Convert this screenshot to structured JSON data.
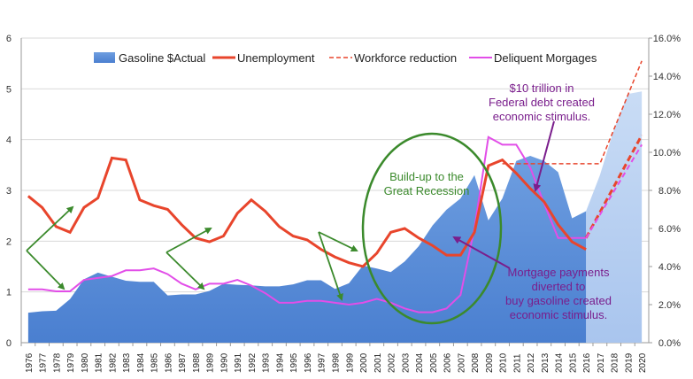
{
  "chart_data": {
    "type": "area+line",
    "years": [
      "1976",
      "1977",
      "1978",
      "1979",
      "1980",
      "1981",
      "1982",
      "1983",
      "1984",
      "1985",
      "1986",
      "1987",
      "1988",
      "1989",
      "1990",
      "1991",
      "1992",
      "1993",
      "1994",
      "1995",
      "1996",
      "1997",
      "1998",
      "1999",
      "2000",
      "2001",
      "2002",
      "2003",
      "2004",
      "2005",
      "2006",
      "2007",
      "2008",
      "2009",
      "2010",
      "2011",
      "2012",
      "2013",
      "2014",
      "2015",
      "2016",
      "2017",
      "2018",
      "2019",
      "2020"
    ],
    "left_axis": {
      "min": 0,
      "max": 6,
      "ticks": [
        "0",
        "1",
        "2",
        "3",
        "4",
        "5",
        "6"
      ]
    },
    "right_axis": {
      "min": 0,
      "max": 16,
      "ticks": [
        "0.0%",
        "2.0%",
        "4.0%",
        "6.0%",
        "8.0%",
        "10.0%",
        "12.0%",
        "14.0%",
        "16.0%"
      ]
    },
    "series": [
      {
        "name": "Gasoline $Actual",
        "axis": "left",
        "color": "#5b8ed8",
        "values": [
          0.59,
          0.62,
          0.63,
          0.86,
          1.25,
          1.38,
          1.3,
          1.22,
          1.2,
          1.2,
          0.93,
          0.95,
          0.95,
          1.02,
          1.16,
          1.14,
          1.13,
          1.11,
          1.11,
          1.15,
          1.23,
          1.23,
          1.06,
          1.17,
          1.52,
          1.46,
          1.39,
          1.6,
          1.9,
          2.31,
          2.62,
          2.84,
          3.3,
          2.41,
          2.84,
          3.58,
          3.68,
          3.58,
          3.36,
          2.45,
          2.59
        ]
      },
      {
        "name": "Gasoline projection",
        "axis": "left",
        "color": "#b8cff0",
        "x": [
          "2016",
          "2017",
          "2018",
          "2019",
          "2020"
        ],
        "values": [
          2.59,
          3.3,
          4.2,
          4.9,
          4.95
        ]
      },
      {
        "name": "Unemployment",
        "axis": "right",
        "color": "#e8452c",
        "values": [
          7.7,
          7.1,
          6.1,
          5.8,
          7.1,
          7.6,
          9.7,
          9.6,
          7.5,
          7.2,
          7.0,
          6.2,
          5.5,
          5.3,
          5.6,
          6.8,
          7.5,
          6.9,
          6.1,
          5.6,
          5.4,
          4.9,
          4.5,
          4.2,
          4.0,
          4.7,
          5.8,
          6.0,
          5.5,
          5.1,
          4.6,
          4.6,
          5.8,
          9.3,
          9.6,
          8.9,
          8.1,
          7.4,
          6.2,
          5.3,
          4.9
        ]
      },
      {
        "name": "Workforce reduction",
        "axis": "right",
        "color": "#e8452c",
        "style": "dashed",
        "x": [
          "2010",
          "2017",
          "2020"
        ],
        "values": [
          9.4,
          9.4,
          14.8
        ]
      },
      {
        "name": "Unemployment projection",
        "axis": "right",
        "color": "#e8452c",
        "style": "dashed",
        "x": [
          "2016",
          "2020"
        ],
        "values": [
          5.5,
          10.9
        ]
      },
      {
        "name": "Deliquent Morgages",
        "axis": "right",
        "color": "#e24ee8",
        "values": [
          2.8,
          2.8,
          2.7,
          2.7,
          3.3,
          3.4,
          3.5,
          3.8,
          3.8,
          3.9,
          3.6,
          3.1,
          2.8,
          3.1,
          3.1,
          3.3,
          3.0,
          2.6,
          2.1,
          2.1,
          2.2,
          2.2,
          2.1,
          2.0,
          2.1,
          2.3,
          2.1,
          1.8,
          1.6,
          1.6,
          1.8,
          2.5,
          6.0,
          10.8,
          10.4,
          10.4,
          9.2,
          7.3,
          5.5,
          5.5,
          5.5
        ]
      },
      {
        "name": "Mortgage projection",
        "axis": "right",
        "color": "#e24ee8",
        "style": "dashed",
        "x": [
          "2016",
          "2020"
        ],
        "values": [
          5.5,
          10.4
        ]
      }
    ],
    "legend": [
      "Gasoline $Actual",
      "Unemployment",
      "Workforce reduction",
      "Deliquent Morgages"
    ],
    "annotations": {
      "federal_debt": [
        "$10 trillion in",
        "Federal debt created",
        "economic stimulus."
      ],
      "great_recession": [
        "Build-up to the",
        "Great Recession"
      ],
      "mortgage": [
        "Mortgage payments",
        "diverted to",
        "buy gasoline created",
        "economic stimulus."
      ]
    },
    "colors": {
      "annotation_green": "#3b8a2c",
      "annotation_purple": "#7a1e8c",
      "axis": "#9a9a9a"
    }
  }
}
